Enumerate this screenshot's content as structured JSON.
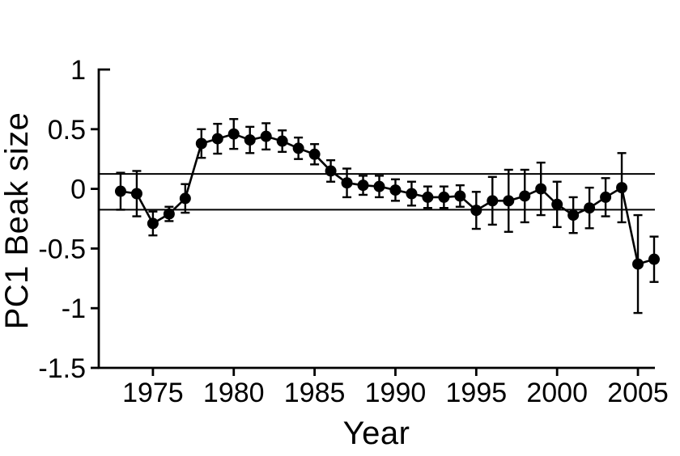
{
  "figure": {
    "background": "#ffffff",
    "ink_color": "#000000"
  },
  "chart_data": {
    "type": "line",
    "title": "",
    "xlabel": "Year",
    "ylabel": "PC1 Beak size",
    "x": [
      1973,
      1974,
      1975,
      1976,
      1977,
      1978,
      1979,
      1980,
      1981,
      1982,
      1983,
      1984,
      1985,
      1986,
      1987,
      1988,
      1989,
      1990,
      1991,
      1992,
      1993,
      1994,
      1995,
      1996,
      1997,
      1998,
      1999,
      2000,
      2001,
      2002,
      2003,
      2004,
      2005,
      2006
    ],
    "series": [
      {
        "name": "Mean PC1 beak size with error bars",
        "values": [
          -0.02,
          -0.04,
          -0.29,
          -0.21,
          -0.08,
          0.38,
          0.42,
          0.46,
          0.41,
          0.44,
          0.4,
          0.34,
          0.29,
          0.15,
          0.05,
          0.03,
          0.02,
          -0.01,
          -0.04,
          -0.07,
          -0.07,
          -0.06,
          -0.18,
          -0.1,
          -0.1,
          -0.06,
          0.0,
          -0.13,
          -0.22,
          -0.16,
          -0.07,
          0.01,
          -0.63,
          -0.59
        ],
        "errors": [
          0.155,
          0.19,
          0.1,
          0.06,
          0.12,
          0.12,
          0.125,
          0.125,
          0.11,
          0.11,
          0.09,
          0.09,
          0.085,
          0.09,
          0.12,
          0.08,
          0.09,
          0.09,
          0.1,
          0.09,
          0.09,
          0.09,
          0.155,
          0.2,
          0.26,
          0.22,
          0.22,
          0.19,
          0.15,
          0.17,
          0.16,
          0.29,
          0.41,
          0.19
        ]
      }
    ],
    "reference_lines": [
      0.125,
      -0.175
    ],
    "x_ticks": [
      1975,
      1980,
      1985,
      1990,
      1995,
      2000,
      2005
    ],
    "x_tick_labels": [
      "1975",
      "1980",
      "1985",
      "1990",
      "1995",
      "2000",
      "2005"
    ],
    "y_ticks": [
      1,
      0.5,
      0,
      -0.5,
      -1,
      -1.5
    ],
    "y_tick_labels": [
      "1",
      "0.5",
      "0",
      "-0.5",
      "-1",
      "-1.5"
    ],
    "xlim": [
      1971.65,
      2006.05
    ],
    "ylim": [
      -1.5,
      1
    ],
    "grid": false,
    "legend": null,
    "marker": "filled-circle"
  }
}
